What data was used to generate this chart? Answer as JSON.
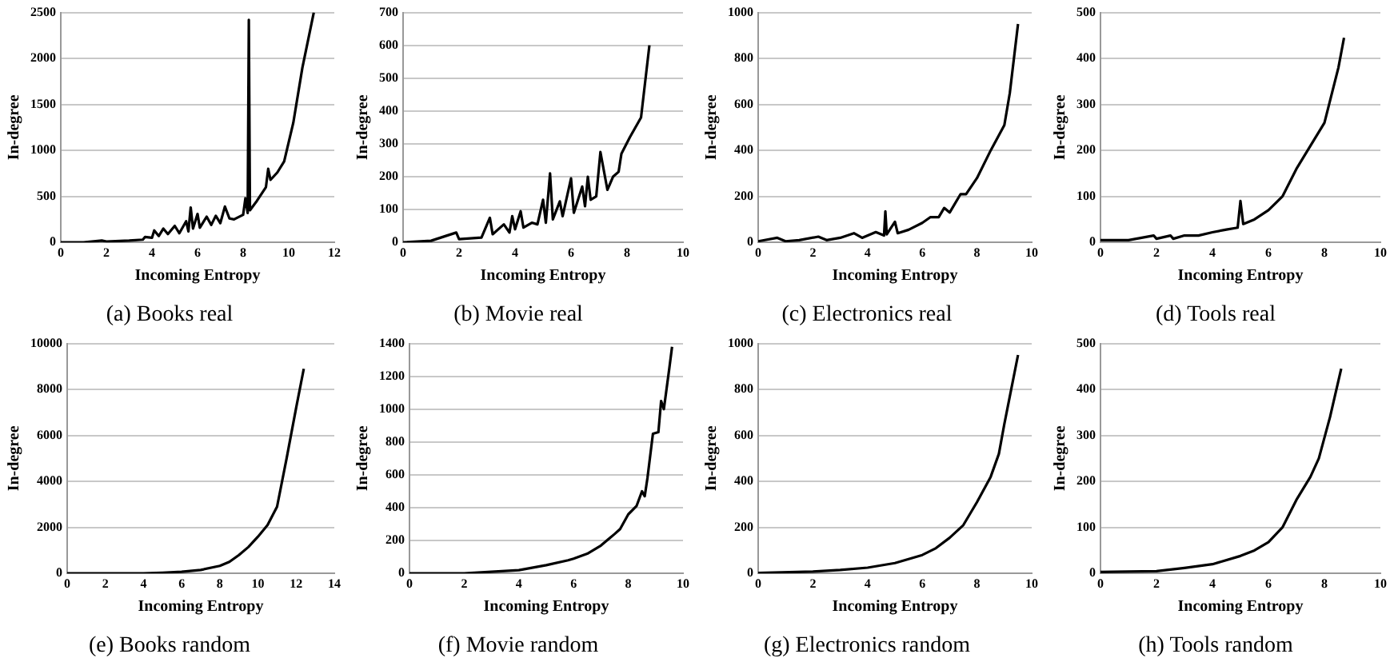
{
  "chart_data": [
    {
      "type": "line",
      "title": "(a) Books real",
      "xlabel": "Incoming Entropy",
      "ylabel": "In-degree",
      "xlim": [
        0,
        12
      ],
      "xticks": [
        0,
        2,
        4,
        6,
        8,
        10,
        12
      ],
      "ylim": [
        0,
        2500
      ],
      "yticks": [
        0,
        500,
        1000,
        1500,
        2000,
        2500
      ],
      "grid": "y",
      "marker": "none",
      "x": [
        0,
        1,
        1.8,
        2,
        3,
        3.6,
        3.7,
        4,
        4.1,
        4.3,
        4.5,
        4.7,
        5,
        5.2,
        5.5,
        5.6,
        5.7,
        5.8,
        6,
        6.1,
        6.4,
        6.6,
        6.8,
        7,
        7.2,
        7.4,
        7.6,
        8,
        8.1,
        8.2,
        8.25,
        8.3,
        8.6,
        9,
        9.1,
        9.2,
        9.5,
        9.8,
        10.2,
        10.6,
        11.1
      ],
      "series": [
        {
          "color": "#000000",
          "values": [
            0,
            0,
            20,
            10,
            20,
            30,
            60,
            50,
            130,
            70,
            150,
            90,
            180,
            100,
            230,
            120,
            380,
            150,
            310,
            160,
            280,
            190,
            290,
            210,
            390,
            260,
            250,
            300,
            480,
            320,
            2420,
            350,
            450,
            600,
            800,
            680,
            760,
            880,
            1300,
            1900,
            2500
          ]
        }
      ]
    },
    {
      "type": "line",
      "title": "(b) Movie real",
      "xlabel": "Incoming Entropy",
      "ylabel": "In-degree",
      "xlim": [
        0,
        10
      ],
      "xticks": [
        0,
        2,
        4,
        6,
        8,
        10
      ],
      "ylim": [
        0,
        700
      ],
      "yticks": [
        0,
        100,
        200,
        300,
        400,
        500,
        600,
        700
      ],
      "grid": "y",
      "marker": "none",
      "x": [
        0,
        1,
        1.9,
        2,
        2.8,
        3.1,
        3.2,
        3.6,
        3.8,
        3.9,
        4,
        4.2,
        4.3,
        4.6,
        4.8,
        5,
        5.1,
        5.25,
        5.35,
        5.6,
        5.7,
        6,
        6.1,
        6.4,
        6.5,
        6.6,
        6.7,
        6.9,
        7.05,
        7.3,
        7.5,
        7.7,
        7.8,
        8.1,
        8.5,
        8.8
      ],
      "series": [
        {
          "color": "#000000",
          "values": [
            0,
            5,
            30,
            10,
            15,
            75,
            25,
            55,
            30,
            80,
            40,
            95,
            45,
            60,
            55,
            130,
            60,
            210,
            70,
            125,
            80,
            195,
            90,
            170,
            110,
            200,
            130,
            140,
            275,
            160,
            200,
            215,
            270,
            320,
            380,
            600
          ]
        }
      ]
    },
    {
      "type": "line",
      "title": "(c) Electronics real",
      "xlabel": "Incoming Entropy",
      "ylabel": "In-degree",
      "xlim": [
        0,
        10
      ],
      "xticks": [
        0,
        2,
        4,
        6,
        8,
        10
      ],
      "ylim": [
        0,
        1000
      ],
      "yticks": [
        0,
        200,
        400,
        600,
        800,
        1000
      ],
      "grid": "y",
      "marker": "none",
      "x": [
        0,
        0.7,
        1,
        1.5,
        2.2,
        2.5,
        3,
        3.5,
        3.8,
        4.3,
        4.6,
        4.65,
        4.7,
        5,
        5.1,
        5.5,
        6,
        6.3,
        6.6,
        6.8,
        7,
        7.4,
        7.6,
        8,
        8.5,
        9,
        9.2,
        9.5
      ],
      "series": [
        {
          "color": "#000000",
          "values": [
            5,
            20,
            5,
            10,
            25,
            10,
            20,
            40,
            20,
            45,
            30,
            135,
            35,
            90,
            40,
            55,
            85,
            110,
            110,
            150,
            130,
            210,
            210,
            280,
            400,
            510,
            650,
            950
          ]
        }
      ]
    },
    {
      "type": "line",
      "title": "(d) Tools real",
      "xlabel": "Incoming Entropy",
      "ylabel": "In-degree",
      "xlim": [
        0,
        10
      ],
      "xticks": [
        0,
        2,
        4,
        6,
        8,
        10
      ],
      "ylim": [
        0,
        500
      ],
      "yticks": [
        0,
        100,
        200,
        300,
        400,
        500
      ],
      "grid": "y",
      "marker": "none",
      "x": [
        0,
        1,
        1.9,
        2,
        2.5,
        2.6,
        3,
        3.5,
        4,
        4.5,
        4.9,
        5,
        5.1,
        5.5,
        6,
        6.5,
        7,
        7.5,
        8,
        8.5,
        8.7
      ],
      "series": [
        {
          "color": "#000000",
          "values": [
            5,
            5,
            15,
            8,
            15,
            8,
            15,
            15,
            22,
            28,
            32,
            90,
            40,
            50,
            70,
            100,
            160,
            210,
            260,
            380,
            445
          ]
        }
      ]
    },
    {
      "type": "line",
      "title": "(e) Books random",
      "xlabel": "Incoming Entropy",
      "ylabel": "In-degree",
      "xlim": [
        0,
        14
      ],
      "xticks": [
        0,
        2,
        4,
        6,
        8,
        10,
        12,
        14
      ],
      "ylim": [
        0,
        10000
      ],
      "yticks": [
        0,
        2000,
        4000,
        6000,
        8000,
        10000
      ],
      "grid": "y",
      "marker": "none",
      "x": [
        0,
        2,
        4,
        5,
        6,
        7,
        8,
        8.5,
        9,
        9.5,
        10,
        10.5,
        11,
        11.5,
        12,
        12.4
      ],
      "series": [
        {
          "color": "#000000",
          "values": [
            0,
            0,
            0,
            30,
            70,
            150,
            330,
            500,
            800,
            1150,
            1600,
            2100,
            2900,
            5000,
            7200,
            8900
          ]
        }
      ]
    },
    {
      "type": "line",
      "title": "(f) Movie random",
      "xlabel": "Incoming Entropy",
      "ylabel": "In-degree",
      "xlim": [
        0,
        10
      ],
      "xticks": [
        0,
        2,
        4,
        6,
        8,
        10
      ],
      "ylim": [
        0,
        1400
      ],
      "yticks": [
        0,
        200,
        400,
        600,
        800,
        1000,
        1200,
        1400
      ],
      "grid": "y",
      "marker": "none",
      "x": [
        0,
        2,
        3,
        4,
        5,
        5.8,
        6,
        6.5,
        7,
        7.5,
        7.7,
        8,
        8.3,
        8.5,
        8.6,
        8.7,
        8.9,
        9.1,
        9.2,
        9.3,
        9.5,
        9.6
      ],
      "series": [
        {
          "color": "#000000",
          "values": [
            0,
            0,
            10,
            20,
            50,
            80,
            90,
            120,
            170,
            240,
            270,
            360,
            410,
            500,
            470,
            580,
            850,
            860,
            1050,
            1000,
            1250,
            1380
          ]
        }
      ]
    },
    {
      "type": "line",
      "title": "(g) Electronics random",
      "xlabel": "Incoming Entropy",
      "ylabel": "In-degree",
      "xlim": [
        0,
        10
      ],
      "xticks": [
        0,
        2,
        4,
        6,
        8,
        10
      ],
      "ylim": [
        0,
        1000
      ],
      "yticks": [
        0,
        200,
        400,
        600,
        800,
        1000
      ],
      "grid": "y",
      "marker": "none",
      "x": [
        0,
        2,
        3,
        4,
        5,
        6,
        6.5,
        7,
        7.5,
        8,
        8.5,
        8.8,
        9,
        9.5
      ],
      "series": [
        {
          "color": "#000000",
          "values": [
            2,
            8,
            15,
            25,
            45,
            80,
            110,
            155,
            210,
            310,
            420,
            520,
            650,
            950
          ]
        }
      ]
    },
    {
      "type": "line",
      "title": "(h) Tools random",
      "xlabel": "Incoming Entropy",
      "ylabel": "In-degree",
      "xlim": [
        0,
        10
      ],
      "xticks": [
        0,
        2,
        4,
        6,
        8,
        10
      ],
      "ylim": [
        0,
        500
      ],
      "yticks": [
        0,
        100,
        200,
        300,
        400,
        500
      ],
      "grid": "y",
      "marker": "none",
      "x": [
        0,
        2,
        3,
        4,
        5,
        5.5,
        6,
        6.5,
        7,
        7.5,
        7.8,
        8.2,
        8.6
      ],
      "series": [
        {
          "color": "#000000",
          "values": [
            3,
            5,
            12,
            20,
            38,
            50,
            68,
            100,
            160,
            210,
            250,
            340,
            445
          ]
        }
      ]
    }
  ]
}
